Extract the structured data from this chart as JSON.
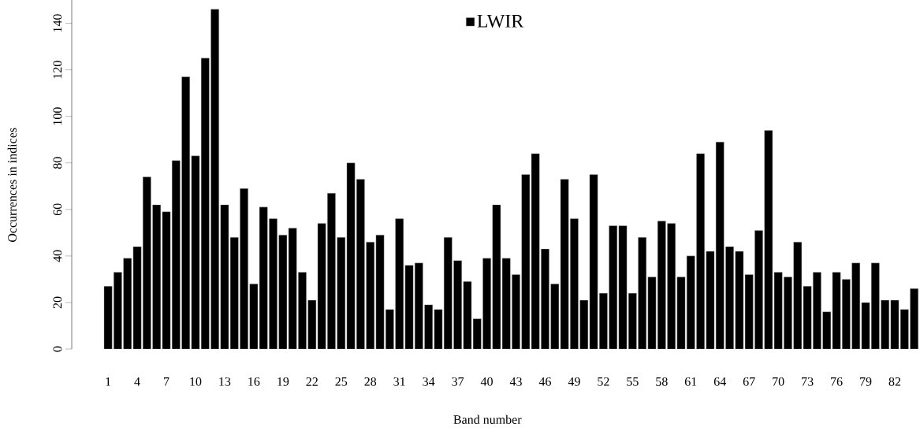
{
  "chart_data": {
    "type": "bar",
    "xlabel": "Band number",
    "ylabel": "Occurrences in indices",
    "categories": [
      "1",
      null,
      null,
      "4",
      null,
      null,
      "7",
      null,
      null,
      "10",
      null,
      null,
      "13",
      null,
      null,
      "16",
      null,
      null,
      "19",
      null,
      null,
      "22",
      null,
      null,
      "25",
      null,
      null,
      "28",
      null,
      null,
      "31",
      null,
      null,
      "34",
      null,
      null,
      "37",
      null,
      null,
      "40",
      null,
      null,
      "43",
      null,
      null,
      "46",
      null,
      null,
      "49",
      null,
      null,
      "52",
      null,
      null,
      "55",
      null,
      null,
      "58",
      null,
      null,
      "61",
      null,
      null,
      "64",
      null,
      null,
      "67",
      null,
      null,
      "70",
      null,
      null,
      "73",
      null,
      null,
      "76",
      null,
      null,
      "79",
      null,
      null,
      "82",
      null,
      null
    ],
    "series": [
      {
        "name": "LWIR",
        "color": "#000000",
        "values": [
          27,
          33,
          39,
          44,
          74,
          62,
          59,
          81,
          117,
          83,
          125,
          146,
          62,
          48,
          69,
          28,
          61,
          56,
          49,
          52,
          33,
          21,
          54,
          67,
          48,
          80,
          73,
          46,
          49,
          17,
          56,
          36,
          37,
          19,
          17,
          48,
          38,
          29,
          13,
          39,
          62,
          39,
          32,
          75,
          84,
          43,
          28,
          73,
          56,
          21,
          75,
          24,
          53,
          53,
          24,
          48,
          31,
          55,
          54,
          31,
          40,
          84,
          42,
          89,
          44,
          42,
          32,
          51,
          94,
          33,
          31,
          46,
          27,
          33,
          16,
          33,
          30,
          37,
          20,
          37,
          21,
          21,
          17,
          26
        ]
      }
    ],
    "ylim": [
      0,
      150
    ],
    "yticks": [
      0,
      20,
      40,
      60,
      80,
      100,
      120,
      140
    ],
    "legend": "top"
  }
}
